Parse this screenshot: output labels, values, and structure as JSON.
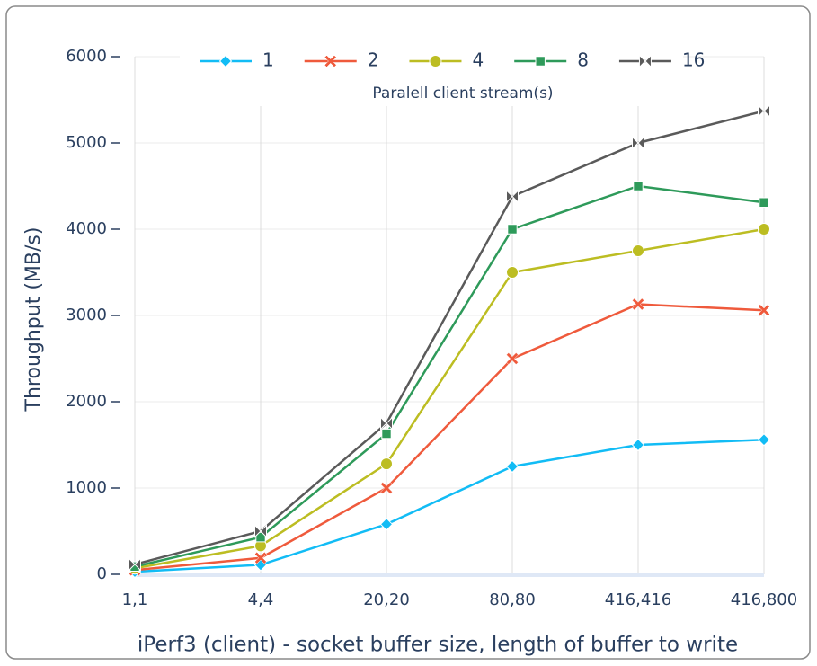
{
  "chart_data": {
    "type": "line",
    "categories": [
      "1,1",
      "4,4",
      "20,20",
      "80,80",
      "416,416",
      "416,800"
    ],
    "series": [
      {
        "name": "1",
        "color": "#12bcf5",
        "marker": "diamond",
        "values": [
          30,
          110,
          580,
          1250,
          1500,
          1560
        ]
      },
      {
        "name": "2",
        "color": "#ef5a3c",
        "marker": "x",
        "values": [
          50,
          190,
          1000,
          2500,
          3130,
          3060
        ]
      },
      {
        "name": "4",
        "color": "#bcbd22",
        "marker": "circle",
        "values": [
          70,
          330,
          1280,
          3500,
          3750,
          4000
        ]
      },
      {
        "name": "8",
        "color": "#2e9a5a",
        "marker": "square",
        "values": [
          90,
          430,
          1630,
          4000,
          4500,
          4310
        ]
      },
      {
        "name": "16",
        "color": "#5a5a5a",
        "marker": "bowtie",
        "values": [
          115,
          500,
          1750,
          4380,
          5000,
          5370
        ]
      }
    ],
    "legend_title": "Paralell client stream(s)",
    "xlabel": "iPerf3 (client) - socket buffer size, length of buffer to write",
    "ylabel": "Throughput (MB/s)",
    "ylim": [
      0,
      6000
    ],
    "yticks": [
      0,
      1000,
      2000,
      3000,
      4000,
      5000,
      6000
    ],
    "grid": true,
    "legend": "top"
  }
}
